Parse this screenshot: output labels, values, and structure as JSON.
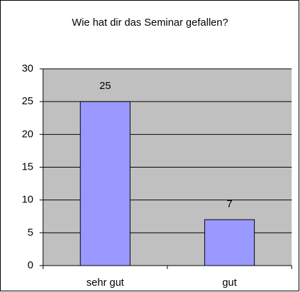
{
  "chart_data": {
    "type": "bar",
    "title": "Wie hat dir das Seminar gefallen?",
    "categories": [
      "sehr gut",
      "gut"
    ],
    "values": [
      25,
      7
    ],
    "color": "#9999ff",
    "ylim": [
      0,
      30
    ],
    "yticks": [
      0,
      5,
      10,
      15,
      20,
      25,
      30
    ],
    "grid": true
  }
}
